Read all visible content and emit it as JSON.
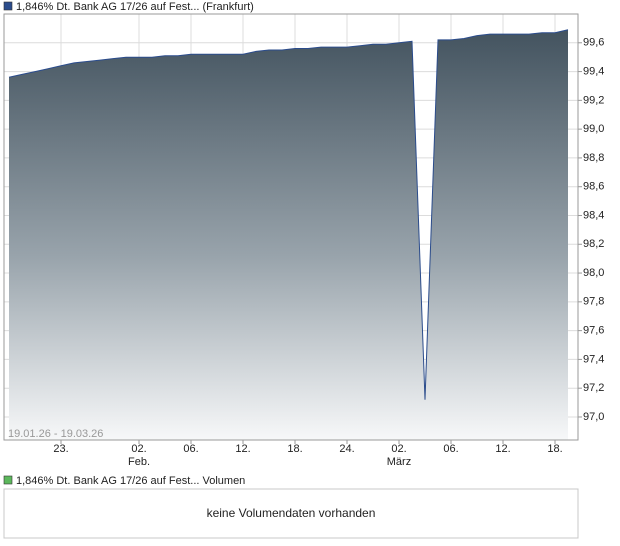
{
  "chart_data": {
    "type": "area",
    "series": [
      {
        "name": "1,846% Dt. Bank AG 17/26 auf Fest... (Frankfurt)",
        "color": "#2b4c8c",
        "values": [
          99.36,
          99.38,
          99.4,
          99.42,
          99.44,
          99.46,
          99.47,
          99.48,
          99.49,
          99.5,
          99.5,
          99.5,
          99.51,
          99.51,
          99.52,
          99.52,
          99.52,
          99.52,
          99.52,
          99.54,
          99.55,
          99.55,
          99.56,
          99.56,
          99.57,
          99.57,
          99.57,
          99.58,
          99.59,
          99.59,
          99.6,
          99.61,
          97.12,
          99.62,
          99.62,
          99.63,
          99.65,
          99.66,
          99.66,
          99.66,
          99.66,
          99.67,
          99.67,
          99.69
        ]
      }
    ],
    "categories": [
      null,
      null,
      null,
      null,
      "23.",
      null,
      null,
      null,
      null,
      null,
      "02.",
      null,
      null,
      null,
      "06.",
      null,
      null,
      null,
      "12.",
      null,
      null,
      null,
      "18.",
      null,
      null,
      null,
      "24.",
      null,
      null,
      null,
      "02.",
      null,
      null,
      null,
      "06.",
      null,
      null,
      null,
      "12.",
      null,
      null,
      null,
      "18.",
      null
    ],
    "x_sublabels": [
      null,
      null,
      null,
      null,
      null,
      null,
      null,
      null,
      null,
      null,
      "Feb.",
      null,
      null,
      null,
      null,
      null,
      null,
      null,
      null,
      null,
      null,
      null,
      null,
      null,
      null,
      null,
      null,
      null,
      null,
      null,
      "März",
      null,
      null,
      null,
      null,
      null,
      null,
      null,
      null,
      null,
      null,
      null,
      null,
      null
    ],
    "ylim": [
      96.84,
      99.8
    ],
    "yticks": [
      {
        "value": 97.0,
        "label": "97,0"
      },
      {
        "value": 97.2,
        "label": "97,2"
      },
      {
        "value": 97.4,
        "label": "97,4"
      },
      {
        "value": 97.6,
        "label": "97,6"
      },
      {
        "value": 97.8,
        "label": "97,8"
      },
      {
        "value": 98.0,
        "label": "98,0"
      },
      {
        "value": 98.2,
        "label": "98,2"
      },
      {
        "value": 98.4,
        "label": "98,4"
      },
      {
        "value": 98.6,
        "label": "98,6"
      },
      {
        "value": 98.8,
        "label": "98,8"
      },
      {
        "value": 99.0,
        "label": "99,0"
      },
      {
        "value": 99.2,
        "label": "99,2"
      },
      {
        "value": 99.4,
        "label": "99,4"
      },
      {
        "value": 99.6,
        "label": "99,6"
      }
    ],
    "grid": true,
    "date_range": "19.01.26 - 19.03.26"
  },
  "volume": {
    "legend": "1,846% Dt. Bank AG 17/26 auf Fest... Volumen",
    "color": "#5cb85c",
    "message": "keine Volumendaten vorhanden"
  }
}
